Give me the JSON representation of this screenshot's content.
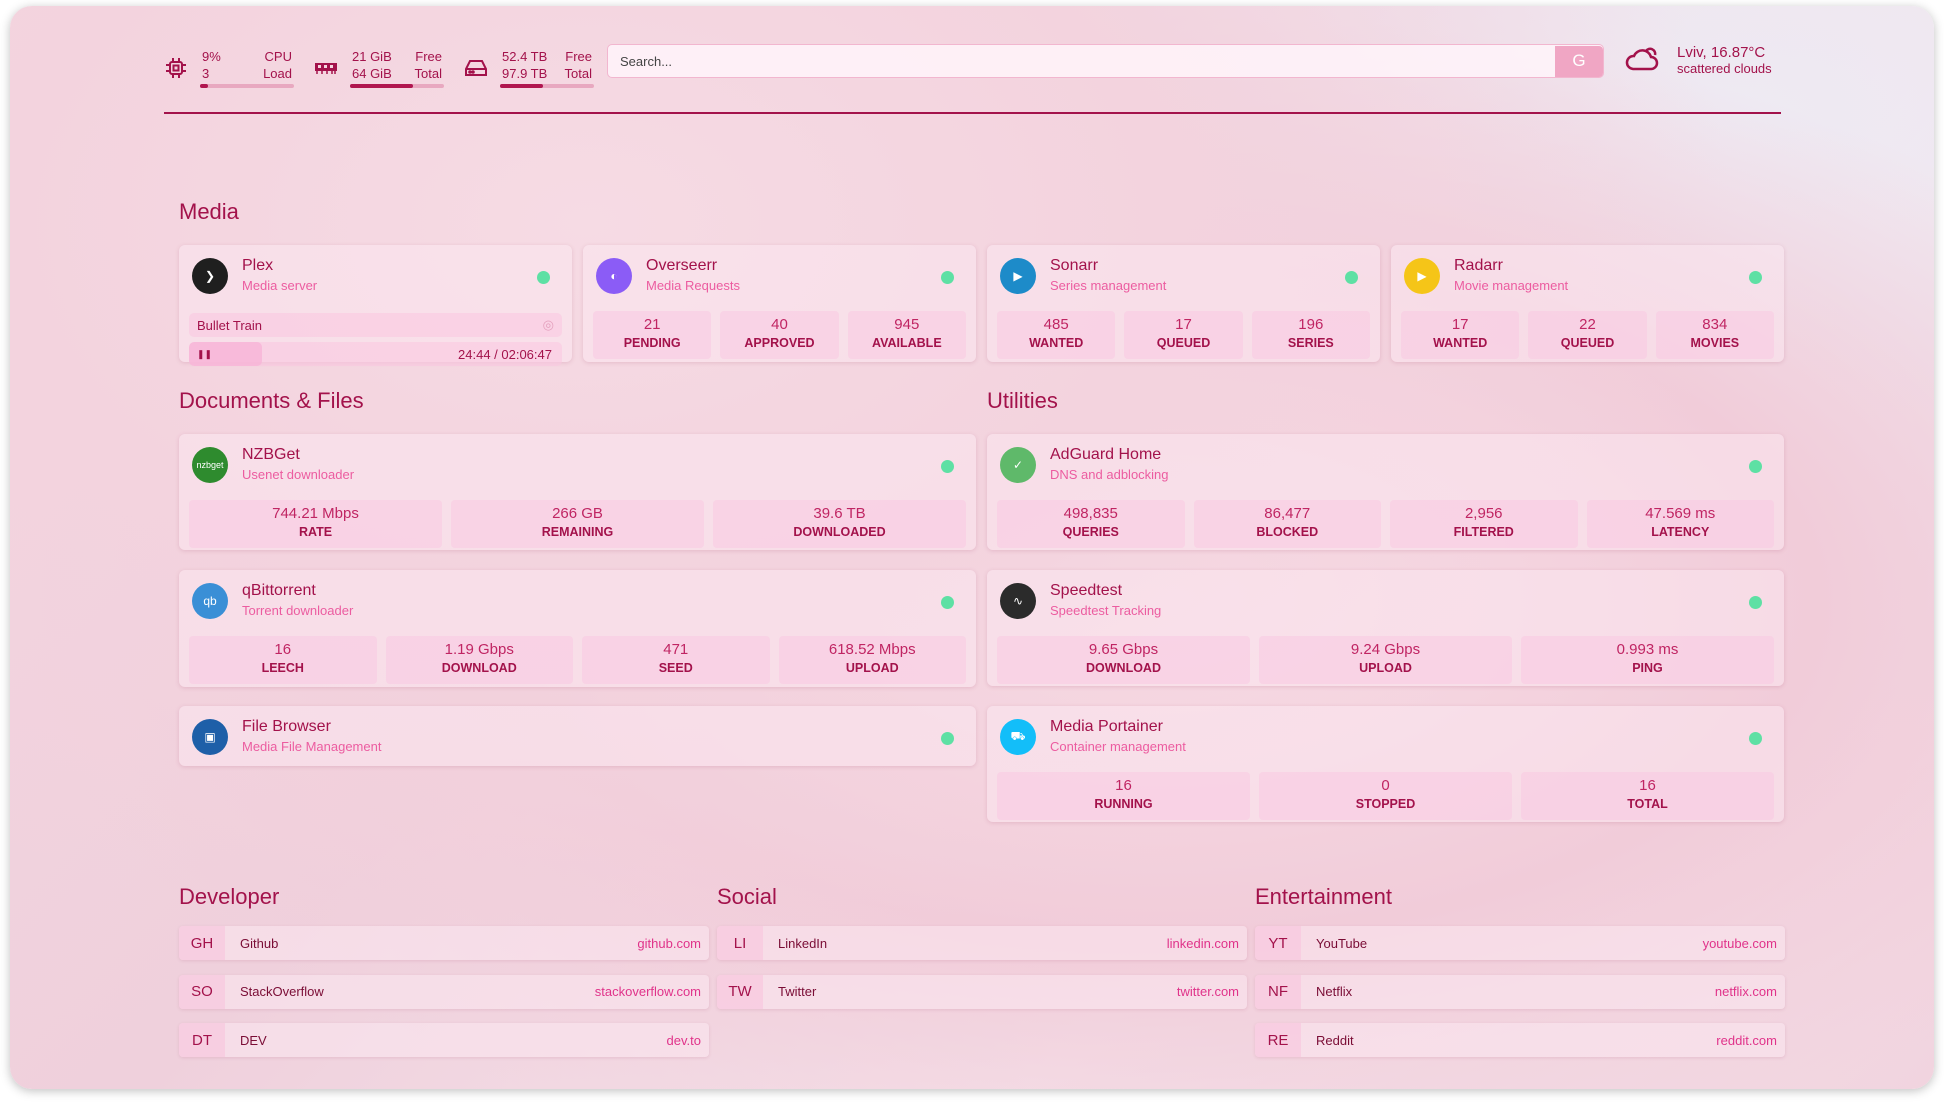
{
  "resources": {
    "cpu": {
      "icon": "cpu-icon",
      "value": "9%",
      "cores": "3",
      "label1": "CPU",
      "label2": "Load",
      "percent": 9
    },
    "memory": {
      "icon": "memory-icon",
      "value": "21 GiB",
      "total": "64 GiB",
      "label1": "Free",
      "label2": "Total",
      "percent": 67
    },
    "disk": {
      "icon": "disk-icon",
      "value": "52.4 TB",
      "total": "97.9 TB",
      "label1": "Free",
      "label2": "Total",
      "percent": 46
    }
  },
  "search": {
    "placeholder": "Search...",
    "provider": "G"
  },
  "weather": {
    "icon": "cloud-icon",
    "location": "Lviv, 16.87°C",
    "condition": "scattered clouds"
  },
  "colors": {
    "accent": "#a3124b",
    "subtitle": "#ec5ca0",
    "status": "#5ee0a4"
  },
  "groups": {
    "media": {
      "title": "Media",
      "cards": [
        {
          "name": "Plex",
          "sub": "Media server",
          "logo": "#1f1f1f",
          "glyph": "❯",
          "np": {
            "title": "Bullet Train",
            "time": "24:44 / 02:06:47",
            "progress": 19.5
          }
        },
        {
          "name": "Overseerr",
          "sub": "Media Requests",
          "logo": "#8b5cf6",
          "glyph": "◐",
          "stats": [
            [
              "21",
              "PENDING"
            ],
            [
              "40",
              "APPROVED"
            ],
            [
              "945",
              "AVAILABLE"
            ]
          ]
        },
        {
          "name": "Sonarr",
          "sub": "Series management",
          "logo": "#1d8bc9",
          "glyph": "▶",
          "stats": [
            [
              "485",
              "WANTED"
            ],
            [
              "17",
              "QUEUED"
            ],
            [
              "196",
              "SERIES"
            ]
          ]
        },
        {
          "name": "Radarr",
          "sub": "Movie management",
          "logo": "#f5c518",
          "glyph": "▶",
          "stats": [
            [
              "17",
              "WANTED"
            ],
            [
              "22",
              "QUEUED"
            ],
            [
              "834",
              "MOVIES"
            ]
          ]
        }
      ]
    },
    "docs": {
      "title": "Documents & Files",
      "cards": [
        {
          "name": "NZBGet",
          "sub": "Usenet downloader",
          "logo": "#2e8b2e",
          "glyph": "nzbget",
          "stats": [
            [
              "744.21 Mbps",
              "RATE"
            ],
            [
              "266 GB",
              "REMAINING"
            ],
            [
              "39.6 TB",
              "DOWNLOADED"
            ]
          ]
        },
        {
          "name": "qBittorrent",
          "sub": "Torrent downloader",
          "logo": "#3a8fd6",
          "glyph": "qb",
          "stats": [
            [
              "16",
              "LEECH"
            ],
            [
              "1.19 Gbps",
              "DOWNLOAD"
            ],
            [
              "471",
              "SEED"
            ],
            [
              "618.52 Mbps",
              "UPLOAD"
            ]
          ]
        },
        {
          "name": "File Browser",
          "sub": "Media File Management",
          "logo": "#1e5fa8",
          "glyph": "▣"
        }
      ]
    },
    "utilities": {
      "title": "Utilities",
      "cards": [
        {
          "name": "AdGuard Home",
          "sub": "DNS and adblocking",
          "logo": "#5fb96a",
          "glyph": "✓",
          "stats": [
            [
              "498,835",
              "QUERIES"
            ],
            [
              "86,477",
              "BLOCKED"
            ],
            [
              "2,956",
              "FILTERED"
            ],
            [
              "47.569 ms",
              "LATENCY"
            ]
          ]
        },
        {
          "name": "Speedtest",
          "sub": "Speedtest Tracking",
          "logo": "#2b2b2b",
          "glyph": "∿",
          "stats": [
            [
              "9.65 Gbps",
              "DOWNLOAD"
            ],
            [
              "9.24 Gbps",
              "UPLOAD"
            ],
            [
              "0.993 ms",
              "PING"
            ]
          ]
        },
        {
          "name": "Media Portainer",
          "sub": "Container management",
          "logo": "#13bef9",
          "glyph": "⛟",
          "stats": [
            [
              "16",
              "RUNNING"
            ],
            [
              "0",
              "STOPPED"
            ],
            [
              "16",
              "TOTAL"
            ]
          ]
        }
      ]
    }
  },
  "bookmarks": [
    {
      "title": "Developer",
      "items": [
        [
          "GH",
          "Github",
          "github.com"
        ],
        [
          "SO",
          "StackOverflow",
          "stackoverflow.com"
        ],
        [
          "DT",
          "DEV",
          "dev.to"
        ]
      ]
    },
    {
      "title": "Social",
      "items": [
        [
          "LI",
          "LinkedIn",
          "linkedin.com"
        ],
        [
          "TW",
          "Twitter",
          "twitter.com"
        ]
      ]
    },
    {
      "title": "Entertainment",
      "items": [
        [
          "YT",
          "YouTube",
          "youtube.com"
        ],
        [
          "NF",
          "Netflix",
          "netflix.com"
        ],
        [
          "RE",
          "Reddit",
          "reddit.com"
        ]
      ]
    }
  ]
}
